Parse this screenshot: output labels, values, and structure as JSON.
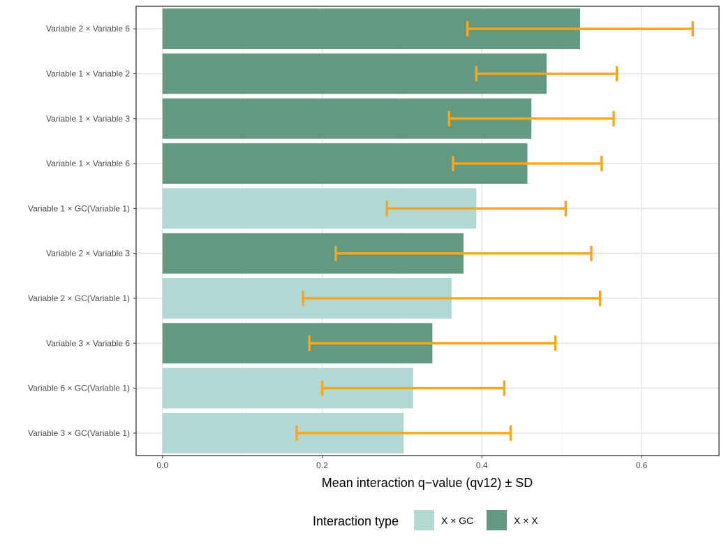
{
  "chart_data": {
    "type": "bar",
    "orientation": "horizontal",
    "title": "",
    "xlabel": "Mean interaction q−value (qv12) ± SD",
    "ylabel": "",
    "xlim": [
      -0.033,
      0.697
    ],
    "xticks": [
      0.0,
      0.2,
      0.4,
      0.6
    ],
    "xtick_labels": [
      "0.0",
      "0.2",
      "0.4",
      "0.6"
    ],
    "grid": true,
    "legend": {
      "title": "Interaction type",
      "position": "bottom",
      "entries": [
        {
          "label": "X × GC",
          "color": "#b2d8d3"
        },
        {
          "label": "X × X",
          "color": "#629980"
        }
      ]
    },
    "errorbar_color": "#f9a61a",
    "categories": [
      "Variable 2 × Variable 6",
      "Variable 1 × Variable 2",
      "Variable 1 × Variable 3",
      "Variable 1 × Variable 6",
      "Variable 1 × GC(Variable 1)",
      "Variable 2 × Variable 3",
      "Variable 2 × GC(Variable 1)",
      "Variable 3 × Variable 6",
      "Variable 6 × GC(Variable 1)",
      "Variable 3 × GC(Variable 1)"
    ],
    "values": [
      0.523,
      0.481,
      0.462,
      0.457,
      0.393,
      0.377,
      0.362,
      0.338,
      0.314,
      0.302
    ],
    "errors": [
      0.141,
      0.088,
      0.103,
      0.093,
      0.112,
      0.16,
      0.186,
      0.154,
      0.114,
      0.134
    ],
    "types": [
      "X × X",
      "X × X",
      "X × X",
      "X × X",
      "X × GC",
      "X × X",
      "X × GC",
      "X × X",
      "X × GC",
      "X × GC"
    ]
  }
}
